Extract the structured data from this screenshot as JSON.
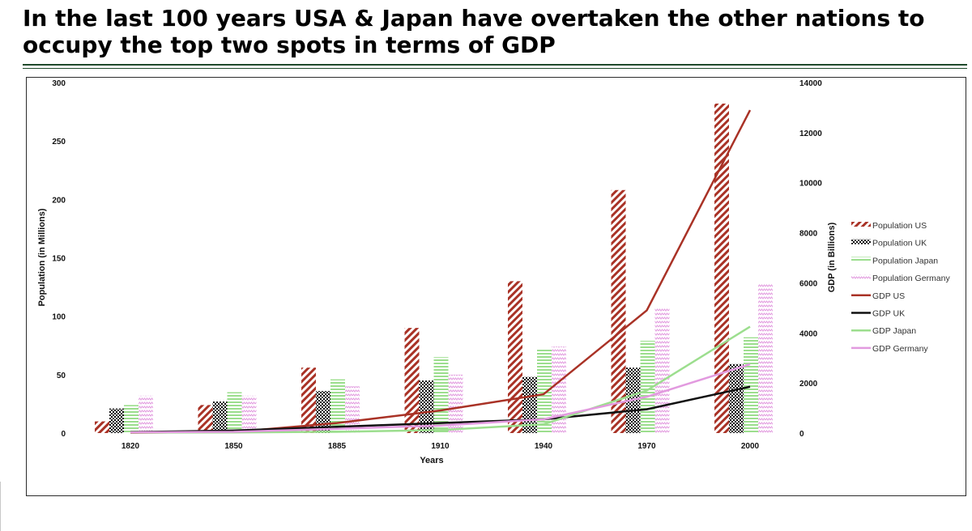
{
  "page": {
    "title": "In the last 100 years USA & Japan have overtaken the other nations to occupy the top two spots in terms of GDP"
  },
  "colors": {
    "us": "#a93226",
    "uk": "#111111",
    "japan": "#9cde8e",
    "germany": "#e29adf",
    "title_rule": "#1f4a2c"
  },
  "chart_data": {
    "type": "bar",
    "combo": "bar+line",
    "title": "",
    "categories": [
      "1820",
      "1850",
      "1885",
      "1910",
      "1940",
      "1970",
      "2000"
    ],
    "xlabel": "Years",
    "ylabel": "Population (in Millions)",
    "y2label": "GDP (in Billions)",
    "ylim": [
      0,
      300
    ],
    "y2lim": [
      0,
      14000
    ],
    "yticks": [
      "0",
      "50",
      "100",
      "150",
      "200",
      "250",
      "300"
    ],
    "y2ticks": [
      "0",
      "2000",
      "4000",
      "6000",
      "8000",
      "10000",
      "12000",
      "14000"
    ],
    "grid": false,
    "legend_position": "right",
    "series": [
      {
        "name": "Population US",
        "kind": "bar",
        "axis": "left",
        "color": "#a93226",
        "pattern": "diagonal-stripes",
        "values": [
          10,
          24,
          56,
          90,
          130,
          208,
          282
        ]
      },
      {
        "name": "Population UK",
        "kind": "bar",
        "axis": "left",
        "color": "#111111",
        "pattern": "checker",
        "values": [
          21,
          27,
          36,
          45,
          48,
          56,
          59
        ]
      },
      {
        "name": "Population Japan",
        "kind": "bar",
        "axis": "left",
        "color": "#9cde8e",
        "pattern": "horizontal-stripes",
        "values": [
          24,
          35,
          46,
          65,
          72,
          79,
          82
        ]
      },
      {
        "name": "Population Germany",
        "kind": "bar",
        "axis": "left",
        "color": "#e29adf",
        "pattern": "zigzag",
        "values": [
          32,
          32,
          40,
          50,
          74,
          107,
          128
        ]
      },
      {
        "name": "GDP US",
        "kind": "line",
        "axis": "right",
        "color": "#a93226",
        "values": [
          13,
          43,
          400,
          900,
          1550,
          4900,
          12900
        ]
      },
      {
        "name": "GDP UK",
        "kind": "line",
        "axis": "right",
        "color": "#111111",
        "values": [
          37,
          100,
          250,
          400,
          550,
          950,
          1850
        ]
      },
      {
        "name": "GDP Japan",
        "kind": "line",
        "axis": "right",
        "color": "#9cde8e",
        "values": [
          21,
          25,
          50,
          120,
          350,
          1700,
          4250
        ]
      },
      {
        "name": "GDP Germany",
        "kind": "line",
        "axis": "right",
        "color": "#e29adf",
        "values": [
          27,
          50,
          170,
          300,
          550,
          1450,
          2750
        ]
      }
    ]
  }
}
